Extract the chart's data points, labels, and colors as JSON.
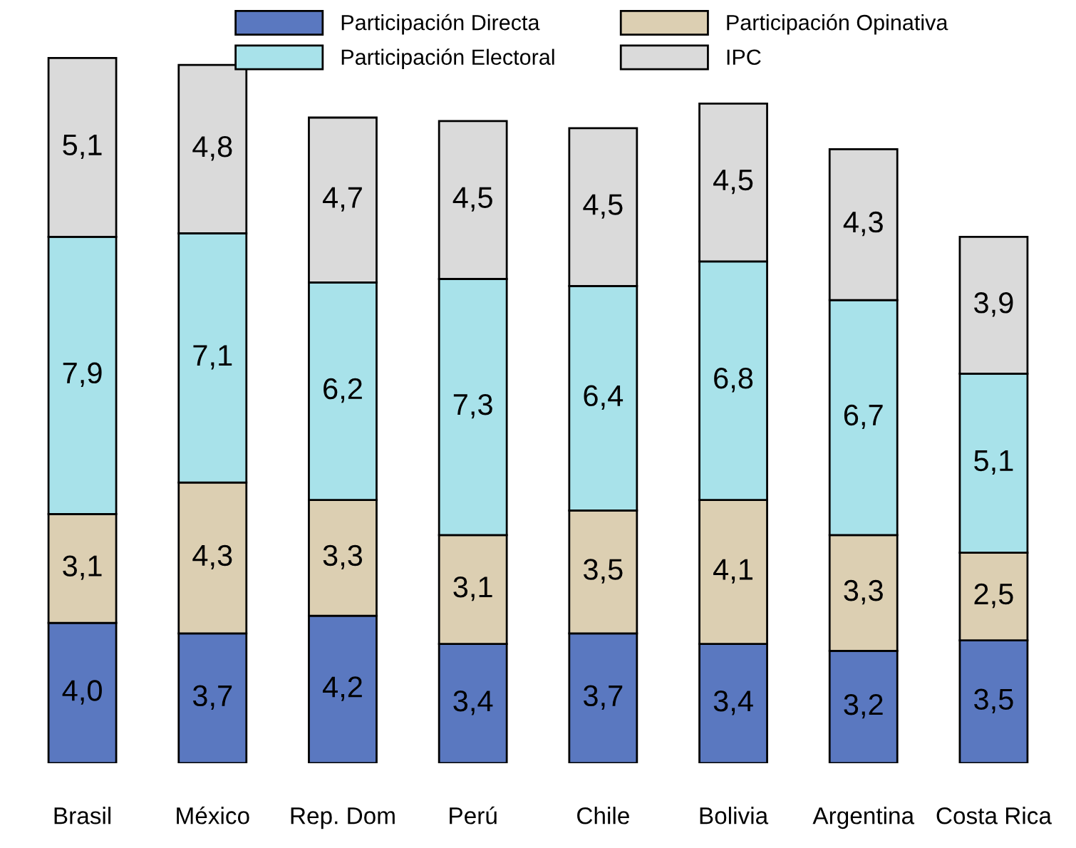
{
  "chart_data": {
    "type": "bar",
    "stacked": true,
    "legend": "top",
    "grid": false,
    "tick_labels": "x",
    "categories": [
      "Brasil",
      "México",
      "Rep. Dom",
      "Perú",
      "Chile",
      "Bolivia",
      "Argentina",
      "Costa Rica"
    ],
    "series": [
      {
        "name": "Participación Directa",
        "color": "#5a78c0",
        "values": [
          4.0,
          3.7,
          4.2,
          3.4,
          3.7,
          3.4,
          3.2,
          3.5
        ],
        "value_labels": [
          "4,0",
          "3,7",
          "4,2",
          "3,4",
          "3,7",
          "3,4",
          "3,2",
          "3,5"
        ]
      },
      {
        "name": "Participación Opinativa",
        "color": "#dccfb2",
        "values": [
          3.1,
          4.3,
          3.3,
          3.1,
          3.5,
          4.1,
          3.3,
          2.5
        ],
        "value_labels": [
          "3,1",
          "4,3",
          "3,3",
          "3,1",
          "3,5",
          "4,1",
          "3,3",
          "2,5"
        ]
      },
      {
        "name": "Participación Electoral",
        "color": "#a8e2ea",
        "values": [
          7.9,
          7.1,
          6.2,
          7.3,
          6.4,
          6.8,
          6.7,
          5.1
        ],
        "value_labels": [
          "7,9",
          "7,1",
          "6,2",
          "7,3",
          "6,4",
          "6,8",
          "6,7",
          "5,1"
        ]
      },
      {
        "name": "IPC",
        "color": "#dadada",
        "values": [
          5.1,
          4.8,
          4.7,
          4.5,
          4.5,
          4.5,
          4.3,
          3.9
        ],
        "value_labels": [
          "5,1",
          "4,8",
          "4,7",
          "4,5",
          "4,5",
          "4,5",
          "4,3",
          "3,9"
        ]
      }
    ]
  }
}
